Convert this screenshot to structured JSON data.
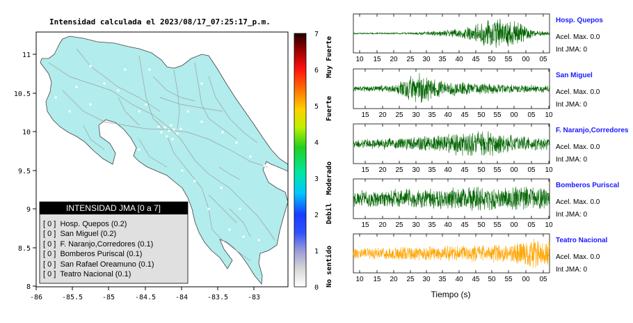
{
  "map": {
    "title": "Intensidad calculada el 2023/08/17_07:25:17_p.m.",
    "x_ticks": [
      "-86",
      "-85.5",
      "-85",
      "-84.5",
      "-84",
      "-83.5",
      "-83"
    ],
    "y_ticks": [
      "11",
      "10.5",
      "10",
      "9.5",
      "9",
      "8.5",
      "8"
    ],
    "legend": {
      "title": "INTENSIDAD JMA [0 a 7]",
      "items": [
        "[ 0 ]  Hosp. Quepos (0.2)",
        "[ 0 ]  San Miguel (0.2)",
        "[ 0 ]  F. Naranjo,Corredores (0.1)",
        "[ 0 ]  Bomberos Puriscal (0.1)",
        "[ 0 ]  San Rafael Oreamuno (0.1)",
        "[ 0 ]  Teatro Nacional (0.1)"
      ]
    },
    "colors": {
      "land": "#b2ecec",
      "roads": "#a0a0a0",
      "legend_bg": "#e0e0e0",
      "legend_header": "#000000"
    }
  },
  "colorbar": {
    "ticks": [
      "0",
      "1",
      "2",
      "3",
      "4",
      "5",
      "6",
      "7"
    ],
    "category_labels": [
      "No sentido",
      "Debil",
      "Moderado",
      "Fuerte",
      "Muy Fuerte"
    ]
  },
  "traces": {
    "xlabel": "Tiempo (s)",
    "stations": [
      {
        "name": "Hosp. Quepos",
        "accel": "Acel. Max. 0.0",
        "int": "Int JMA: 0",
        "ticks": [
          "10",
          "15",
          "20",
          "25",
          "30",
          "35",
          "40",
          "45",
          "50",
          "55",
          "00",
          "05"
        ],
        "color": "#006400"
      },
      {
        "name": "San Miguel",
        "accel": "Acel. Max. 0.0",
        "int": "Int JMA: 0",
        "ticks": [
          "15",
          "20",
          "25",
          "30",
          "35",
          "40",
          "45",
          "50",
          "55",
          "00",
          "05",
          "10"
        ],
        "color": "#006400"
      },
      {
        "name": "F. Naranjo,Corredores",
        "accel": "Acel. Max. 0.0",
        "int": "Int JMA: 0",
        "ticks": [
          "15",
          "20",
          "25",
          "30",
          "35",
          "40",
          "45",
          "50",
          "55",
          "00",
          "05",
          "10"
        ],
        "color": "#006400"
      },
      {
        "name": "Bomberos Puriscal",
        "accel": "Acel. Max. 0.0",
        "int": "Int JMA: 0",
        "ticks": [
          "15",
          "20",
          "25",
          "30",
          "35",
          "40",
          "45",
          "50",
          "55",
          "00",
          "05",
          "10"
        ],
        "color": "#006400"
      },
      {
        "name": "Teatro Nacional",
        "accel": "Acel. Max. 0.0",
        "int": "Int JMA: 0",
        "ticks": [
          "10",
          "15",
          "20",
          "25",
          "30",
          "35",
          "40",
          "45",
          "50",
          "55",
          "00",
          "05"
        ],
        "color": "#ffa500"
      }
    ]
  },
  "chart_data": [
    {
      "type": "map",
      "title": "Intensidad calculada el 2023/08/17_07:25:17_p.m.",
      "xlim": [
        -86,
        -82.6
      ],
      "ylim": [
        8,
        11.3
      ],
      "grid": false,
      "legend_placement": "bottom-left"
    },
    {
      "type": "heatmap",
      "range": [
        0,
        7
      ],
      "levels": [
        0,
        1,
        2,
        3,
        4,
        5,
        6,
        7
      ],
      "categories": [
        "No sentido",
        "Debil",
        "Moderado",
        "Fuerte",
        "Muy Fuerte"
      ]
    },
    {
      "type": "line",
      "xlabel": "Tiempo (s)",
      "series": [
        {
          "name": "Hosp. Quepos",
          "peak_acceleration": 0.0,
          "jma_intensity": 0
        },
        {
          "name": "San Miguel",
          "peak_acceleration": 0.0,
          "jma_intensity": 0
        },
        {
          "name": "F. Naranjo,Corredores",
          "peak_acceleration": 0.0,
          "jma_intensity": 0
        },
        {
          "name": "Bomberos Puriscal",
          "peak_acceleration": 0.0,
          "jma_intensity": 0
        },
        {
          "name": "Teatro Nacional",
          "peak_acceleration": 0.0,
          "jma_intensity": 0
        }
      ]
    }
  ]
}
